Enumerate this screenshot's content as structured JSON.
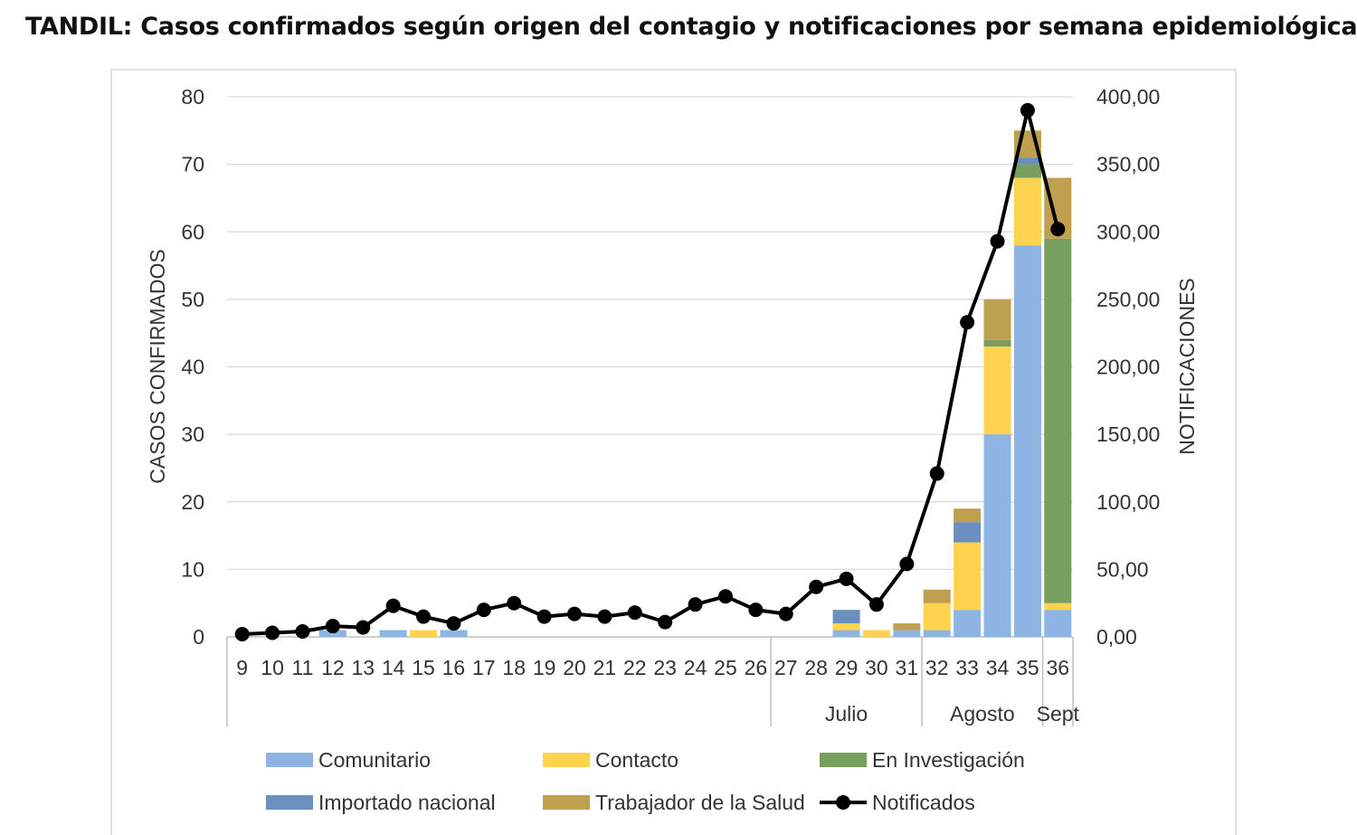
{
  "chart_data": {
    "type": "bar",
    "title": "TANDIL: Casos confirmados según origen del contagio y notificaciones por semana epidemiológica.",
    "ylabel": "CASOS CONFIRMADOS",
    "y2label": "NOTIFICACIONES",
    "ylim": [
      0,
      80
    ],
    "y2lim": [
      0,
      400
    ],
    "yticks": [
      "0",
      "10",
      "20",
      "30",
      "40",
      "50",
      "60",
      "70",
      "80"
    ],
    "y2ticks": [
      "0,00",
      "50,00",
      "100,00",
      "150,00",
      "200,00",
      "250,00",
      "300,00",
      "350,00",
      "400,00"
    ],
    "categories": [
      "9",
      "10",
      "11",
      "12",
      "13",
      "14",
      "15",
      "16",
      "17",
      "18",
      "19",
      "20",
      "21",
      "22",
      "23",
      "24",
      "25",
      "26",
      "27",
      "28",
      "29",
      "30",
      "31",
      "32",
      "33",
      "34",
      "35",
      "36"
    ],
    "month_groups": [
      {
        "label": "",
        "start": 0,
        "end": 17
      },
      {
        "label": "Julio",
        "start": 18,
        "end": 22
      },
      {
        "label": "Agosto",
        "start": 23,
        "end": 26
      },
      {
        "label": "Sept",
        "start": 27,
        "end": 27
      }
    ],
    "stacked": true,
    "series": [
      {
        "name": "Comunitario",
        "color": "#8db4e2",
        "values": [
          0,
          0,
          0,
          1,
          0,
          1,
          0,
          1,
          0,
          0,
          0,
          0,
          0,
          0,
          0,
          0,
          0,
          0,
          0,
          0,
          1,
          0,
          1,
          1,
          4,
          30,
          58,
          4
        ]
      },
      {
        "name": "Contacto",
        "color": "#ffd34d",
        "values": [
          0,
          0,
          0,
          0,
          0,
          0,
          1,
          0,
          0,
          0,
          0,
          0,
          0,
          0,
          0,
          0,
          0,
          0,
          0,
          0,
          1,
          1,
          0,
          4,
          10,
          13,
          10,
          1
        ]
      },
      {
        "name": "En Investigación",
        "color": "#77a05e",
        "values": [
          0,
          0,
          0,
          0,
          0,
          0,
          0,
          0,
          0,
          0,
          0,
          0,
          0,
          0,
          0,
          0,
          0,
          0,
          0,
          0,
          0,
          0,
          0,
          0,
          0,
          1,
          2,
          54
        ]
      },
      {
        "name": "Importado nacional",
        "color": "#6b8fbe",
        "values": [
          0,
          0,
          0,
          0,
          0,
          0,
          0,
          0,
          0,
          0,
          0,
          0,
          0,
          0,
          0,
          0,
          0,
          0,
          0,
          0,
          2,
          0,
          0,
          0,
          3,
          0,
          1,
          0
        ]
      },
      {
        "name": "Trabajador de la Salud",
        "color": "#bfa04f",
        "values": [
          0,
          0,
          0,
          0,
          0,
          0,
          0,
          0,
          0,
          0,
          0,
          0,
          0,
          0,
          0,
          0,
          0,
          0,
          0,
          0,
          0,
          0,
          1,
          2,
          2,
          6,
          4,
          9
        ]
      }
    ],
    "line_series": {
      "name": "Notificados",
      "color": "#000000",
      "axis": "right",
      "values": [
        2,
        3,
        4,
        8,
        7,
        23,
        15,
        10,
        20,
        25,
        15,
        17,
        15,
        18,
        11,
        24,
        30,
        20,
        17,
        37,
        43,
        24,
        54,
        121,
        233,
        293,
        390,
        302
      ]
    },
    "legend": "bottom",
    "grid": true
  }
}
